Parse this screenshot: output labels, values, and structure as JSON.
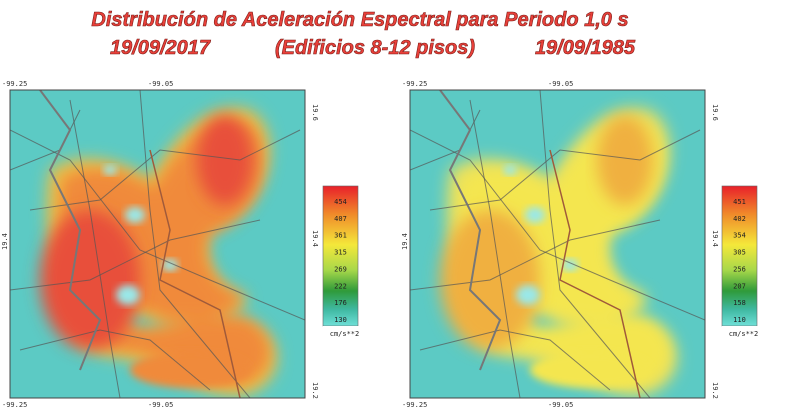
{
  "title": "Distribución de Aceleración Espectral para Periodo 1,0 s",
  "subtitle": {
    "left": "19/09/2017",
    "center": "(Edificios 8-12 pisos)",
    "right": "19/09/1985"
  },
  "maps": [
    {
      "coords": {
        "top_left": "-99.25",
        "top_mid": "-99.05",
        "top_right": "19.6",
        "left_mid": "19.4",
        "right_mid": "19.4",
        "bottom_left": "-99.25",
        "bottom_mid": "-99.05",
        "bottom_right": "19.2"
      },
      "legend": {
        "values": [
          454,
          407,
          361,
          315,
          269,
          222,
          176,
          130
        ],
        "unit": "cm/s**2"
      }
    },
    {
      "coords": {
        "top_left": "-99.25",
        "top_mid": "-99.05",
        "top_right": "19.6",
        "left_mid": "19.4",
        "right_mid": "19.4",
        "bottom_left": "-99.25",
        "bottom_mid": "-99.05",
        "bottom_right": "19.2"
      },
      "legend": {
        "values": [
          451,
          402,
          354,
          305,
          256,
          207,
          158,
          110
        ],
        "unit": "cm/s**2"
      }
    }
  ]
}
